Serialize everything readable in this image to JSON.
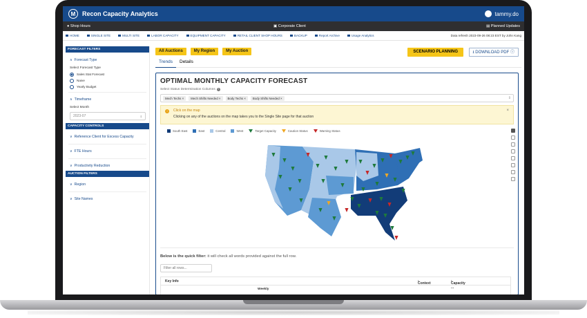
{
  "app": {
    "title": "Recon Capacity Analytics",
    "logo_letter": "M",
    "user": "tammy.do"
  },
  "subbar": {
    "left": "Shop Hours",
    "center": "Corporate Client",
    "right": "Planned Updates"
  },
  "nav": {
    "items": [
      "HOME",
      "SINGLE SITE",
      "MULTI SITE",
      "LABOR CAPACITY",
      "EQUIPMENT CAPACITY",
      "RETAIL CLIENT SHOP HOURS",
      "BACKUP",
      "Report Archive",
      "Usage Analytics"
    ],
    "refresh": "Data refresh 2023-09-26 08:23 EST by John Kang"
  },
  "sidebar": {
    "forecast_filters": "FORECAST FILTERS",
    "forecast_type": "Forecast Type",
    "select_forecast_type": "Select Forecast Type",
    "options": [
      "Sales Stat Forecast",
      "Naive",
      "Yearly Budget"
    ],
    "selected_option": "Sales Stat Forecast",
    "timeframe": "Timeframe",
    "select_month": "Select Month",
    "month_value": "2023-07",
    "capacity_controls": "CAPACITY CONTROLS",
    "reference_client": "Reference Client for Excess Capacity",
    "fte_hours": "FTE Hours",
    "productivity": "Productivity Reduction",
    "auction_filters": "AUCTION FILTERS",
    "region": "Region",
    "site_names": "Site Names"
  },
  "main": {
    "chips": [
      "All Auctions",
      "My Region",
      "My Auction"
    ],
    "scenario": "SCENARIO PLANNING",
    "download": "DOWNLOAD PDF",
    "tabs": [
      "Trends",
      "Details"
    ],
    "active_tab": "Trends",
    "panel_title": "OPTIMAL MONTHLY CAPACITY FORECAST",
    "columns_label": "Select Status Determination Columns",
    "tags": [
      "Mech Techs",
      "Mech Shifts Needed",
      "Body Techs",
      "Body Shifts Needed"
    ],
    "alert_title": "Click on the map",
    "alert_body": "Clicking on any of the auctions on the map takes you to the Single Site page for that auction",
    "legend": [
      {
        "label": "South East",
        "color": "#123c78",
        "kind": "square"
      },
      {
        "label": "East",
        "color": "#2f6fb5",
        "kind": "square"
      },
      {
        "label": "Central",
        "color": "#a9c8e8",
        "kind": "square"
      },
      {
        "label": "West",
        "color": "#5d9ad3",
        "kind": "square"
      },
      {
        "label": "Target Capacity",
        "color": "#1e7a3c",
        "kind": "triangle"
      },
      {
        "label": "Caution Status",
        "color": "#f0a824",
        "kind": "triangle"
      },
      {
        "label": "Warning Status",
        "color": "#c62828",
        "kind": "triangle"
      }
    ],
    "quick_filter_bold": "Below is the quick filter:",
    "quick_filter_rest": "it will check all words provided against the full row.",
    "filter_placeholder": "Filter all rows...",
    "grid_headers": [
      "Key Info",
      "Context",
      "Capacity ..."
    ],
    "grid_sub": "Weekly"
  }
}
